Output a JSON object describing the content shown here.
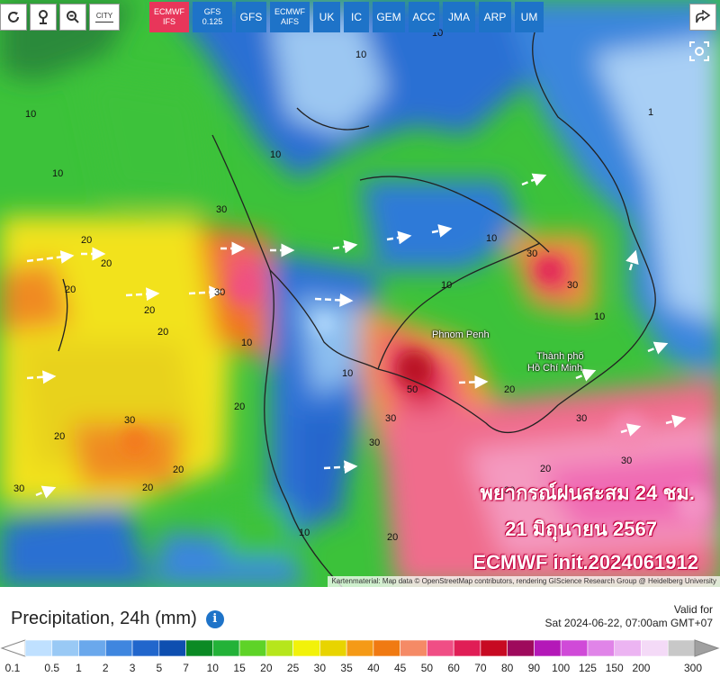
{
  "toolbar": {
    "refresh_icon": "refresh-icon",
    "location_icon": "location-pin-icon",
    "zoom_icon": "zoom-out-icon",
    "city_label": "CITY",
    "models": [
      {
        "label": "ECMWF IFS",
        "line1": "ECMWF",
        "line2": "IFS",
        "active": true
      },
      {
        "label": "GFS 0.125",
        "line1": "GFS",
        "line2": "0.125",
        "active": false
      },
      {
        "label": "GFS",
        "line1": "GFS",
        "line2": "",
        "active": false
      },
      {
        "label": "ECMWF AIFS",
        "line1": "ECMWF",
        "line2": "AIFS",
        "active": false
      },
      {
        "label": "UK",
        "line1": "UK",
        "line2": "",
        "active": false
      },
      {
        "label": "IC",
        "line1": "IC",
        "line2": "",
        "active": false
      },
      {
        "label": "GEM",
        "line1": "GEM",
        "line2": "",
        "active": false
      },
      {
        "label": "ACC",
        "line1": "ACC",
        "line2": "",
        "active": false
      },
      {
        "label": "JMA",
        "line1": "JMA",
        "line2": "",
        "active": false
      },
      {
        "label": "ARP",
        "line1": "ARP",
        "line2": "",
        "active": false
      },
      {
        "label": "UM",
        "line1": "UM",
        "line2": "",
        "active": false
      }
    ],
    "share_icon": "share-icon"
  },
  "map": {
    "places": [
      "Phnom Penh",
      "Thành phố",
      "Hồ Chí Minh"
    ],
    "overlay_line1": "พยากรณ์ฝนสะสม 24 ชม.",
    "overlay_line2": "21 มิถุนายน 2567",
    "overlay_line3": "ECMWF init.2024061912",
    "attribution": "Kartenmaterial: Map data © OpenStreetMap contributors, rendering GIScience Research Group @ Heidelberg University"
  },
  "legend": {
    "title": "Precipitation, 24h (mm)",
    "valid_label": "Valid for",
    "valid_time": "Sat 2024-06-22, 07:00am GMT+07",
    "ticks": [
      "0.1",
      "0.5",
      "1",
      "2",
      "3",
      "5",
      "7",
      "10",
      "15",
      "20",
      "25",
      "30",
      "35",
      "40",
      "45",
      "50",
      "60",
      "70",
      "80",
      "90",
      "100",
      "125",
      "150",
      "200",
      "300"
    ],
    "colors": [
      "#bfe0ff",
      "#99c9f5",
      "#6aa8ec",
      "#3f86df",
      "#2166cc",
      "#0e4fb0",
      "#0b8a24",
      "#23b238",
      "#5ed327",
      "#b6e61c",
      "#f2f20a",
      "#e8d400",
      "#f59a16",
      "#f07a12",
      "#f58a66",
      "#f04e85",
      "#e01e56",
      "#c70a22",
      "#9e0a5c",
      "#b418b8",
      "#d04ad8",
      "#e084e8",
      "#ecb4f2",
      "#f4daf7",
      "#c8c8c8"
    ]
  }
}
